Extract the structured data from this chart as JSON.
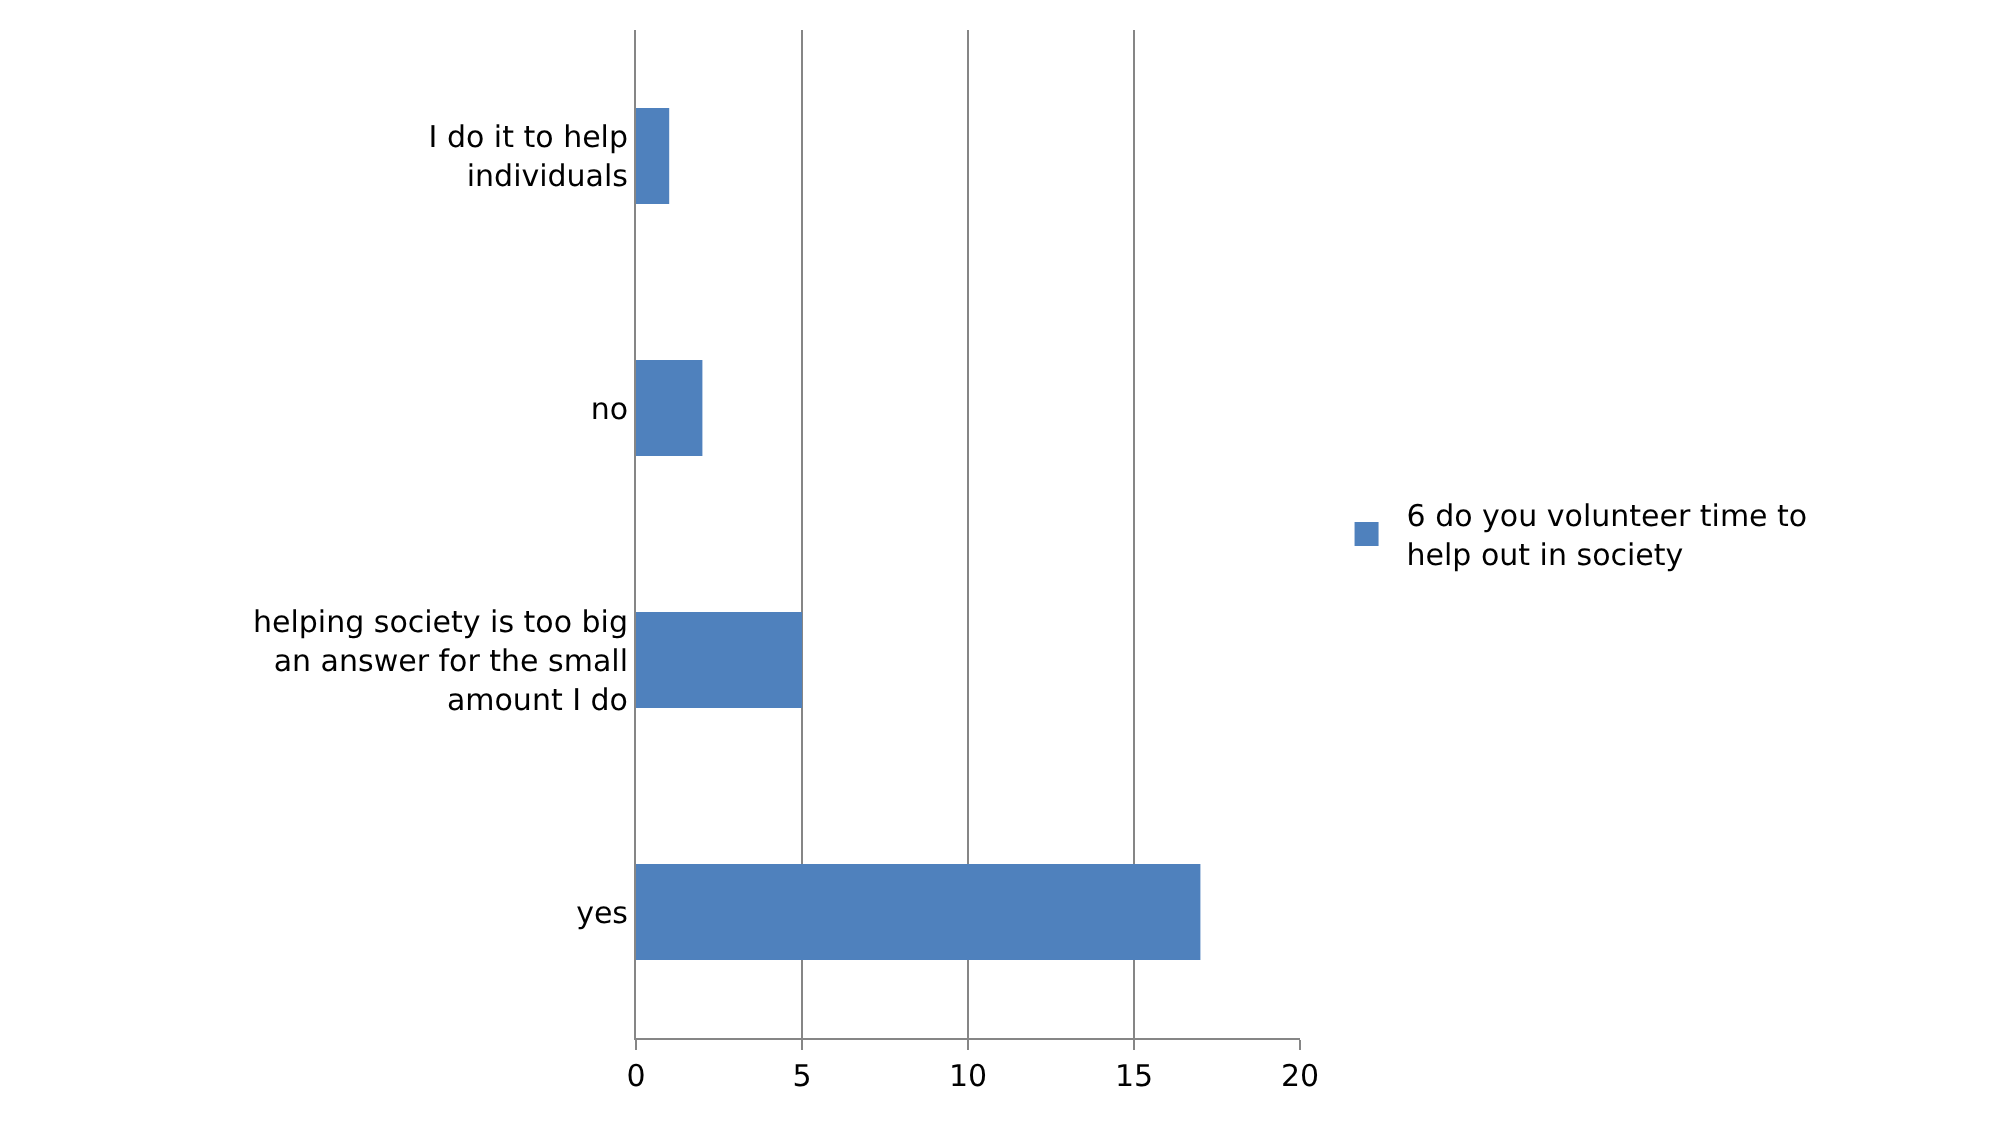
{
  "chart_data": {
    "type": "bar",
    "orientation": "horizontal",
    "categories": [
      "I do it to help individuals",
      "no",
      "helping society is too big an answer for the small amount I do",
      "yes"
    ],
    "series": [
      {
        "name": "6 do you volunteer time to help out in society",
        "color": "#4f81bd",
        "values": [
          1,
          2,
          5,
          17
        ]
      }
    ],
    "xlim": [
      0,
      20
    ],
    "xticks": [
      0,
      5,
      10,
      15,
      20
    ],
    "grid": "x",
    "legend": "right"
  }
}
